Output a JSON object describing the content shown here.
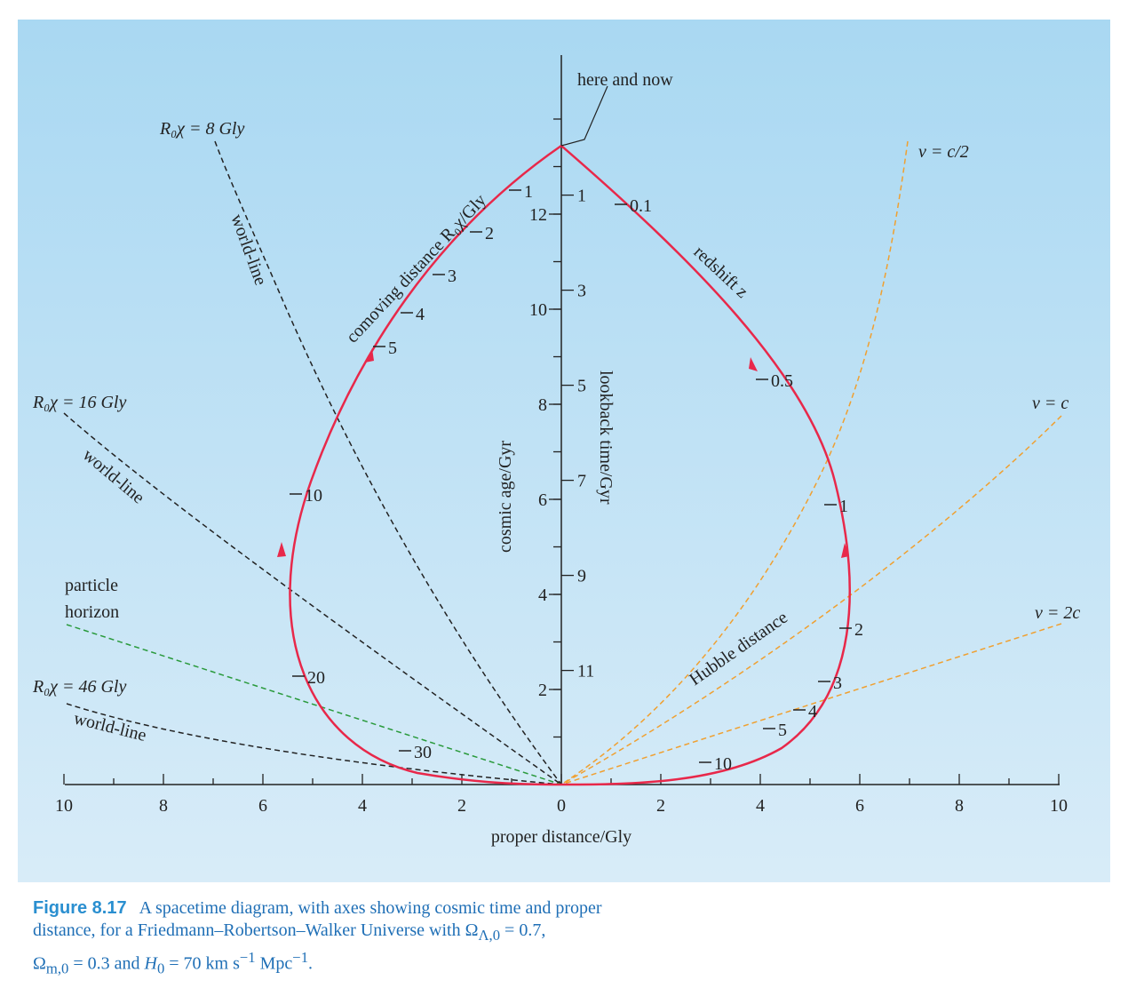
{
  "figure": {
    "number": "Figure 8.17",
    "caption_line1": "A spacetime diagram, with axes showing cosmic time and proper",
    "caption_line2": "distance, for a Friedmann–Robertson–Walker Universe with Ω",
    "caption_omega_lambda_sub": "Λ,0",
    "caption_omega_lambda_val": " = 0.7,",
    "caption_omega_m": "Ω",
    "caption_omega_m_sub": "m,0",
    "caption_omega_m_val": " = 0.3 and ",
    "caption_h0": "H",
    "caption_h0_sub": "0",
    "caption_h0_val": " = 70 km s",
    "caption_exp1": "−1",
    "caption_mpc": " Mpc",
    "caption_exp2": "−1",
    "caption_end": "."
  },
  "labels": {
    "here_and_now": "here and now",
    "x_axis_title": "proper distance/Gly",
    "cosmic_age_title": "cosmic age/Gyr",
    "lookback_title": "lookback time/Gyr",
    "comoving_title": "comoving distance R₀χ/Gly",
    "redshift_title": "redshift z",
    "hubble_distance": "Hubble distance",
    "particle_horizon_1": "particle",
    "particle_horizon_2": "horizon",
    "worldline_1": "world-line",
    "worldline_2": "world-line",
    "worldline_3": "world-line",
    "r8": "R₀χ = 8 Gly",
    "r16": "R₀χ = 16 Gly",
    "r46": "R₀χ = 46 Gly",
    "v_half": "v = c/2",
    "v_c": "v = c",
    "v_2c": "v = 2c"
  },
  "chart_data": {
    "type": "line",
    "x_axis": {
      "label": "proper distance/Gly",
      "range": [
        -10,
        10
      ],
      "tick_labels": [
        "10",
        "8",
        "6",
        "4",
        "2",
        "0",
        "2",
        "4",
        "6",
        "8",
        "10"
      ]
    },
    "y_axis_cosmic_age": {
      "label": "cosmic age/Gyr",
      "range": [
        0,
        13.7
      ],
      "tick_labels": [
        "2",
        "4",
        "6",
        "8",
        "10",
        "12"
      ]
    },
    "y_axis_lookback": {
      "label": "lookback time/Gyr",
      "tick_labels": [
        "1",
        "3",
        "5",
        "7",
        "9",
        "11"
      ]
    },
    "left_curve_comoving_ticks": [
      "1",
      "2",
      "3",
      "4",
      "5",
      "10",
      "20",
      "30"
    ],
    "right_curve_redshift_ticks": [
      "0.1",
      "0.5",
      "1",
      "2",
      "3",
      "4",
      "5",
      "10"
    ],
    "here_and_now": {
      "proper_distance": 0,
      "cosmic_age": 13.4
    },
    "series": [
      {
        "name": "R₀χ = 8 Gly"
      },
      {
        "name": "R₀χ = 16 Gly"
      },
      {
        "name": "R₀χ = 46 Gly"
      },
      {
        "name": "particle horizon"
      },
      {
        "name": "v = c/2"
      },
      {
        "name": "v = c"
      },
      {
        "name": "v = 2c"
      },
      {
        "name": "Hubble distance"
      }
    ],
    "colors": {
      "light_cone": "#e8284a",
      "worldline": "#222222",
      "particle_horizon": "#2a9a3c",
      "velocity": "#f0a030",
      "background_top": "#a9d8f2",
      "background_bottom": "#d8ecf8"
    }
  }
}
